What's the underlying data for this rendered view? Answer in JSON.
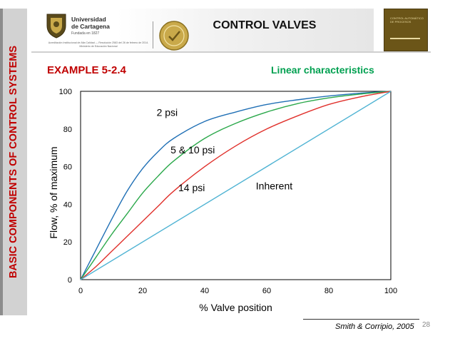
{
  "sidebar": {
    "title": "BASIC COMPONENTS OF CONTROL SYSTEMS"
  },
  "header": {
    "title": "CONTROL VALVES",
    "university": {
      "line1": "Universidad",
      "line2": "de Cartagena",
      "founded": "Fundada en 1827",
      "accreditation": "Acreditación Institucional de Alta Calidad — Resolución 2583 del 26 de febrero de 2014. Ministerio de Educación Nacional"
    },
    "book": {
      "title": "CONTROL AUTOMÁTICO DE PROCESOS"
    }
  },
  "slide": {
    "example_label": "EXAMPLE 5-2.4",
    "subtitle": "Linear characteristics"
  },
  "chart_data": {
    "type": "line",
    "xlabel": "% Valve position",
    "ylabel": "Flow, % of maximum",
    "xlim": [
      0,
      100
    ],
    "ylim": [
      0,
      100
    ],
    "xticks": [
      0,
      20,
      40,
      60,
      80,
      100
    ],
    "yticks": [
      0,
      20,
      40,
      60,
      80,
      100
    ],
    "grid": false,
    "series": [
      {
        "name": "2 psi",
        "color": "#1f6fb5",
        "x": [
          0,
          5,
          10,
          15,
          20,
          25,
          30,
          40,
          50,
          60,
          70,
          80,
          90,
          100
        ],
        "y": [
          0,
          16,
          32,
          47,
          59,
          68,
          75,
          84,
          89,
          93,
          95.5,
          97.5,
          99,
          100
        ]
      },
      {
        "name": "5 & 10 psi",
        "color": "#2aa84a",
        "x": [
          0,
          5,
          10,
          15,
          20,
          25,
          30,
          40,
          50,
          60,
          70,
          80,
          90,
          100
        ],
        "y": [
          0,
          12,
          24,
          35,
          46,
          55,
          63,
          75,
          83,
          89,
          93.5,
          96.5,
          98.5,
          100
        ]
      },
      {
        "name": "14 psi",
        "color": "#e0302b",
        "x": [
          0,
          5,
          10,
          15,
          20,
          25,
          30,
          40,
          50,
          60,
          70,
          80,
          90,
          100
        ],
        "y": [
          0,
          7,
          15,
          23,
          31,
          39,
          47,
          60,
          71,
          80,
          87,
          93,
          97,
          100
        ]
      },
      {
        "name": "Inherent",
        "color": "#4fb3d3",
        "x": [
          0,
          100
        ],
        "y": [
          0,
          100
        ]
      }
    ],
    "annotations": [
      {
        "text": "2 psi",
        "x": 24.5,
        "y": 87
      },
      {
        "text": "5 & 10 psi",
        "x": 29,
        "y": 67
      },
      {
        "text": "14 psi",
        "x": 31.5,
        "y": 47
      },
      {
        "text": "Inherent",
        "x": 56.5,
        "y": 48
      }
    ]
  },
  "footer": {
    "citation": "Smith & Corripio, 2005",
    "page": "28"
  }
}
